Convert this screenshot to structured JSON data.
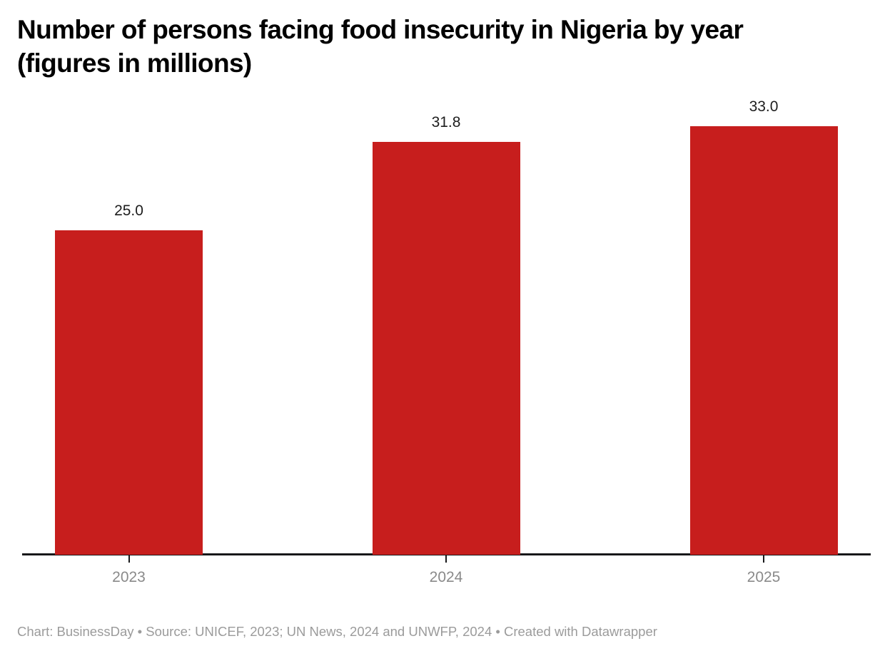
{
  "chart": {
    "title": "Number of persons facing food insecurity in Nigeria by year (figures in millions)",
    "title_lines": [
      "Number of persons facing food insecurity in Nigeria by year",
      "(figures in millions)"
    ]
  },
  "chart_data": {
    "type": "bar",
    "title": "Number of persons facing food insecurity in Nigeria by year (figures in millions)",
    "categories": [
      "2023",
      "2024",
      "2025"
    ],
    "values": [
      25.0,
      31.8,
      33.0
    ],
    "value_labels": [
      "25.0",
      "31.8",
      "33.0"
    ],
    "xlabel": "",
    "ylabel": "",
    "ylim": [
      0,
      33
    ],
    "grid": false,
    "legend": false,
    "bar_color": "#c71e1d",
    "value_label_color": "#1d1d1d",
    "category_label_color": "#8a8a8a",
    "axis_color": "#18181a"
  },
  "footer": {
    "text": "Chart: BusinessDay • Source: UNICEF, 2023; UN News, 2024 and UNWFP, 2024 • Created with Datawrapper"
  },
  "colors": {
    "background": "#ffffff",
    "bar": "#c71e1d",
    "axis": "#18181a",
    "value_label": "#1d1d1d",
    "category_label": "#8a8a8a",
    "footer": "#9b9b9b"
  }
}
